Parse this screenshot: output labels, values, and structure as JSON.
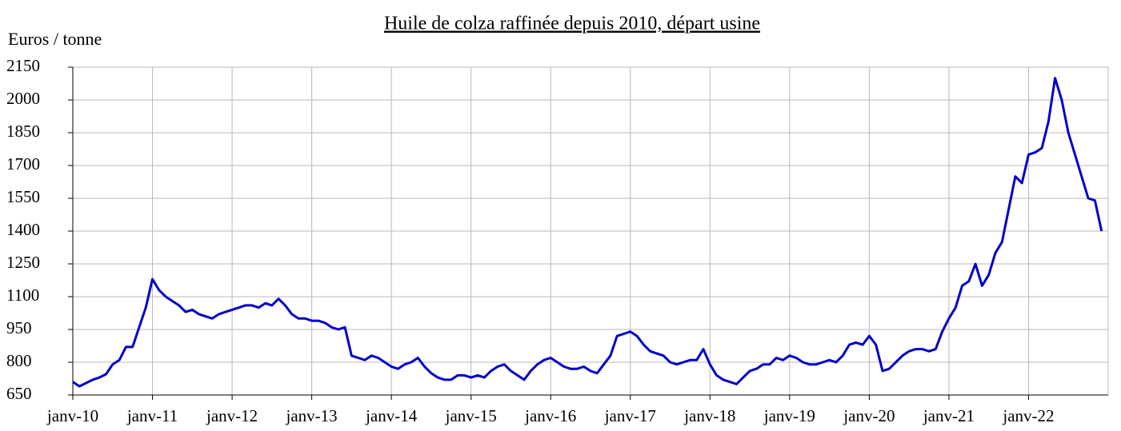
{
  "chart_data": {
    "type": "line",
    "title": "Huile de colza raffinée depuis 2010, départ usine",
    "y_label": "Euros / tonne",
    "x": [
      "2010-01",
      "2010-02",
      "2010-03",
      "2010-04",
      "2010-05",
      "2010-06",
      "2010-07",
      "2010-08",
      "2010-09",
      "2010-10",
      "2010-11",
      "2010-12",
      "2011-01",
      "2011-02",
      "2011-03",
      "2011-04",
      "2011-05",
      "2011-06",
      "2011-07",
      "2011-08",
      "2011-09",
      "2011-10",
      "2011-11",
      "2011-12",
      "2012-01",
      "2012-02",
      "2012-03",
      "2012-04",
      "2012-05",
      "2012-06",
      "2012-07",
      "2012-08",
      "2012-09",
      "2012-10",
      "2012-11",
      "2012-12",
      "2013-01",
      "2013-02",
      "2013-03",
      "2013-04",
      "2013-05",
      "2013-06",
      "2013-07",
      "2013-08",
      "2013-09",
      "2013-10",
      "2013-11",
      "2013-12",
      "2014-01",
      "2014-02",
      "2014-03",
      "2014-04",
      "2014-05",
      "2014-06",
      "2014-07",
      "2014-08",
      "2014-09",
      "2014-10",
      "2014-11",
      "2014-12",
      "2015-01",
      "2015-02",
      "2015-03",
      "2015-04",
      "2015-05",
      "2015-06",
      "2015-07",
      "2015-08",
      "2015-09",
      "2015-10",
      "2015-11",
      "2015-12",
      "2016-01",
      "2016-02",
      "2016-03",
      "2016-04",
      "2016-05",
      "2016-06",
      "2016-07",
      "2016-08",
      "2016-09",
      "2016-10",
      "2016-11",
      "2016-12",
      "2017-01",
      "2017-02",
      "2017-03",
      "2017-04",
      "2017-05",
      "2017-06",
      "2017-07",
      "2017-08",
      "2017-09",
      "2017-10",
      "2017-11",
      "2017-12",
      "2018-01",
      "2018-02",
      "2018-03",
      "2018-04",
      "2018-05",
      "2018-06",
      "2018-07",
      "2018-08",
      "2018-09",
      "2018-10",
      "2018-11",
      "2018-12",
      "2019-01",
      "2019-02",
      "2019-03",
      "2019-04",
      "2019-05",
      "2019-06",
      "2019-07",
      "2019-08",
      "2019-09",
      "2019-10",
      "2019-11",
      "2019-12",
      "2020-01",
      "2020-02",
      "2020-03",
      "2020-04",
      "2020-05",
      "2020-06",
      "2020-07",
      "2020-08",
      "2020-09",
      "2020-10",
      "2020-11",
      "2020-12",
      "2021-01",
      "2021-02",
      "2021-03",
      "2021-04",
      "2021-05",
      "2021-06",
      "2021-07",
      "2021-08",
      "2021-09",
      "2021-10",
      "2021-11",
      "2021-12",
      "2022-01",
      "2022-02",
      "2022-03",
      "2022-04",
      "2022-05",
      "2022-06",
      "2022-07",
      "2022-08",
      "2022-09",
      "2022-10",
      "2022-11",
      "2022-12"
    ],
    "series": [
      {
        "name": "Huile de colza raffinée",
        "color": "#0000c8",
        "values": [
          710,
          690,
          705,
          720,
          730,
          745,
          790,
          810,
          870,
          870,
          960,
          1050,
          1180,
          1130,
          1100,
          1080,
          1060,
          1030,
          1040,
          1020,
          1010,
          1000,
          1020,
          1030,
          1040,
          1050,
          1060,
          1060,
          1050,
          1070,
          1060,
          1090,
          1060,
          1020,
          1000,
          1000,
          990,
          990,
          980,
          960,
          950,
          960,
          830,
          820,
          810,
          830,
          820,
          800,
          780,
          770,
          790,
          800,
          820,
          780,
          750,
          730,
          720,
          720,
          740,
          740,
          730,
          740,
          730,
          760,
          780,
          790,
          760,
          740,
          720,
          760,
          790,
          810,
          820,
          800,
          780,
          770,
          770,
          780,
          760,
          750,
          790,
          830,
          920,
          930,
          940,
          920,
          880,
          850,
          840,
          830,
          800,
          790,
          800,
          810,
          810,
          860,
          790,
          740,
          720,
          710,
          700,
          730,
          760,
          770,
          790,
          790,
          820,
          810,
          830,
          820,
          800,
          790,
          790,
          800,
          810,
          800,
          830,
          880,
          890,
          880,
          920,
          880,
          760,
          770,
          800,
          830,
          850,
          860,
          860,
          850,
          860,
          940,
          1000,
          1050,
          1150,
          1170,
          1250,
          1150,
          1200,
          1300,
          1350,
          1500,
          1650,
          1620,
          1750,
          1760,
          1780,
          1900,
          2100,
          2000,
          1850,
          1750,
          1650,
          1550,
          1540,
          1400
        ]
      }
    ],
    "xlim": [
      "2010-01",
      "2023-01"
    ],
    "xticks": [
      {
        "value": "2010-01",
        "label": "janv-10"
      },
      {
        "value": "2011-01",
        "label": "janv-11"
      },
      {
        "value": "2012-01",
        "label": "janv-12"
      },
      {
        "value": "2013-01",
        "label": "janv-13"
      },
      {
        "value": "2014-01",
        "label": "janv-14"
      },
      {
        "value": "2015-01",
        "label": "janv-15"
      },
      {
        "value": "2016-01",
        "label": "janv-16"
      },
      {
        "value": "2017-01",
        "label": "janv-17"
      },
      {
        "value": "2018-01",
        "label": "janv-18"
      },
      {
        "value": "2019-01",
        "label": "janv-19"
      },
      {
        "value": "2020-01",
        "label": "janv-20"
      },
      {
        "value": "2021-01",
        "label": "janv-21"
      },
      {
        "value": "2022-01",
        "label": "janv-22"
      }
    ],
    "ylim": [
      650,
      2150
    ],
    "yticks": [
      650,
      800,
      950,
      1100,
      1250,
      1400,
      1550,
      1700,
      1850,
      2000,
      2150
    ],
    "grid": true
  }
}
